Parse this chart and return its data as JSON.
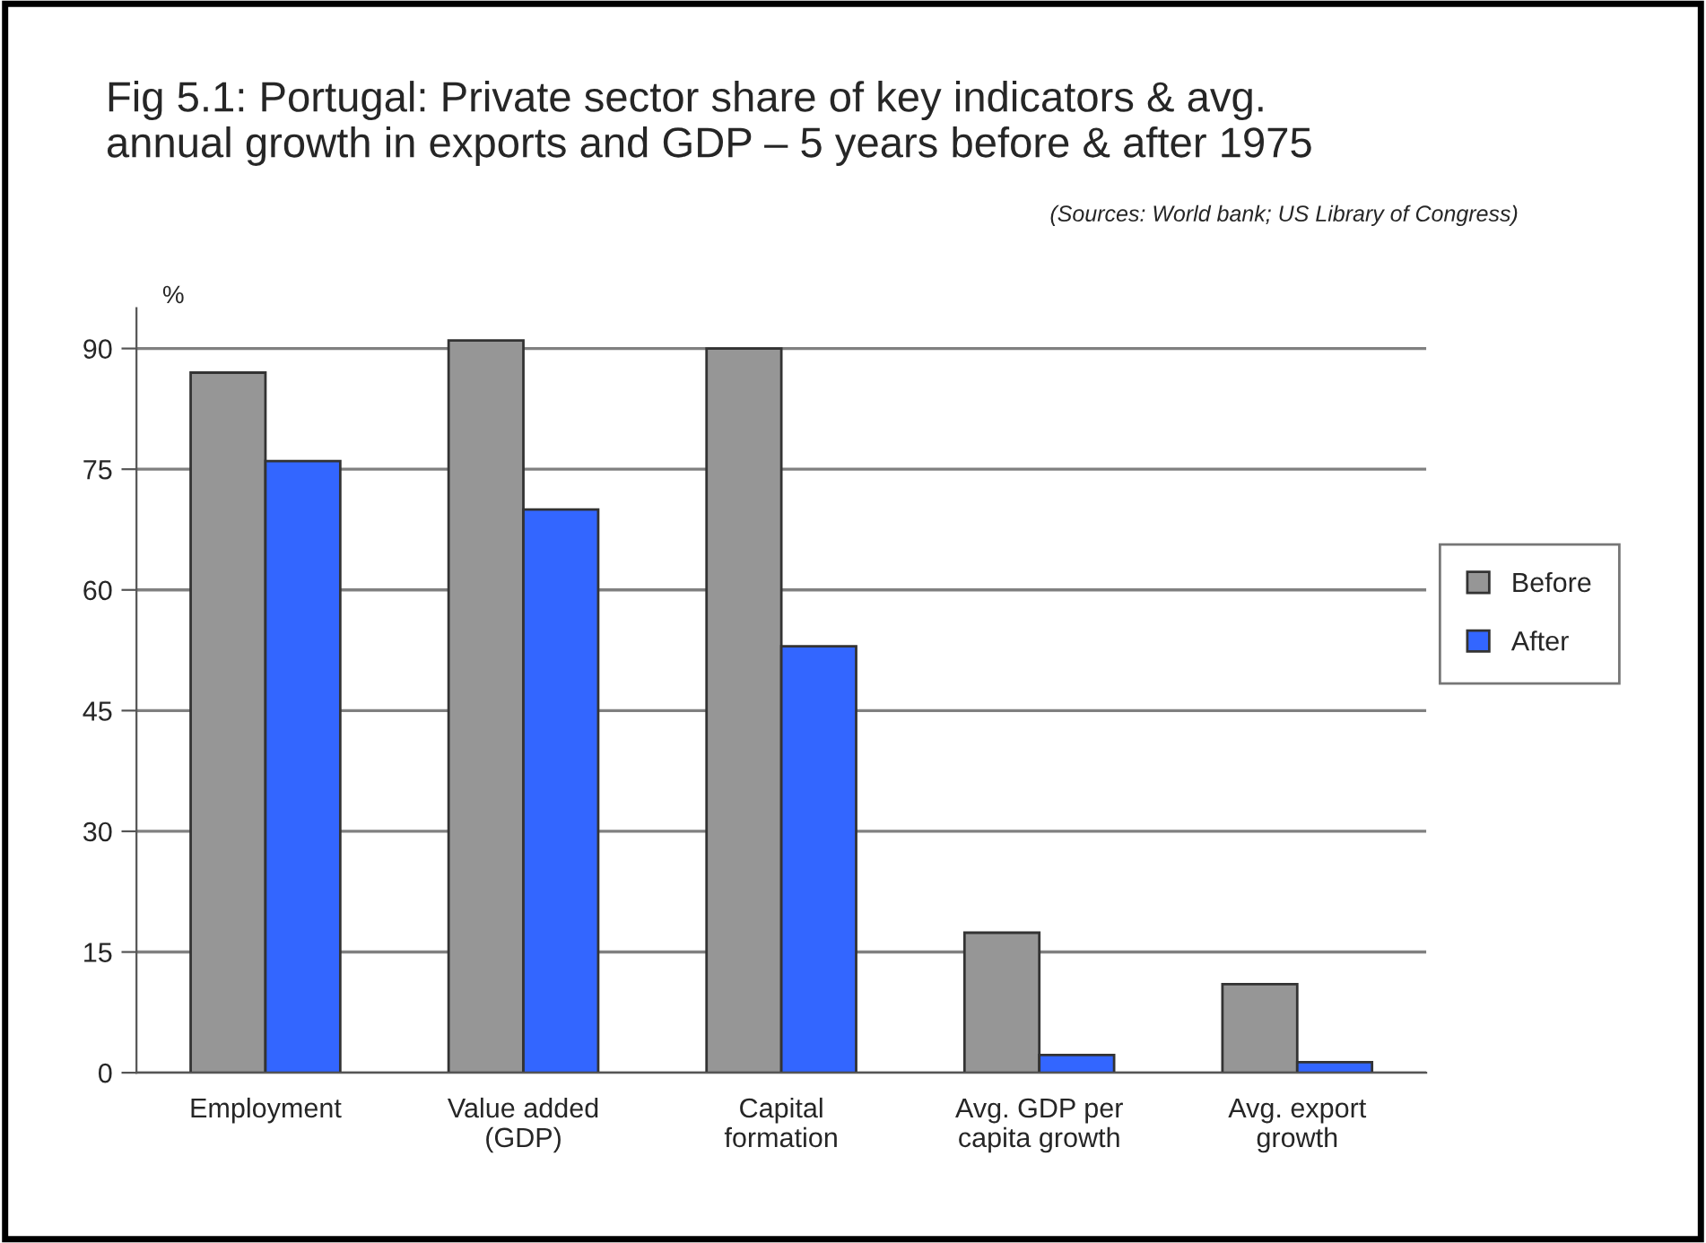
{
  "chart_data": {
    "type": "bar",
    "title": "Fig 5.1: Portugal: Private sector share of key indicators & avg.\nannual growth in exports and GDP – 5 years before & after 1975",
    "annotations": [
      "(Sources: World bank; US Library of Congress)"
    ],
    "ylabel": "%",
    "categories": [
      "Employment",
      "Value added\n(GDP)",
      "Capital\nformation",
      "Avg. GDP per\ncapita growth",
      "Avg. export\ngrowth"
    ],
    "series": [
      {
        "name": "Before",
        "color": "#969696",
        "values": [
          87,
          91,
          90,
          17.4,
          11
        ]
      },
      {
        "name": "After",
        "color": "#3366ff",
        "values": [
          76,
          70,
          53,
          2.2,
          1.3
        ]
      }
    ],
    "ylim": [
      0,
      95
    ],
    "yticks": [
      0,
      15,
      30,
      45,
      60,
      75,
      90
    ],
    "grid": "y",
    "legend": "right"
  }
}
